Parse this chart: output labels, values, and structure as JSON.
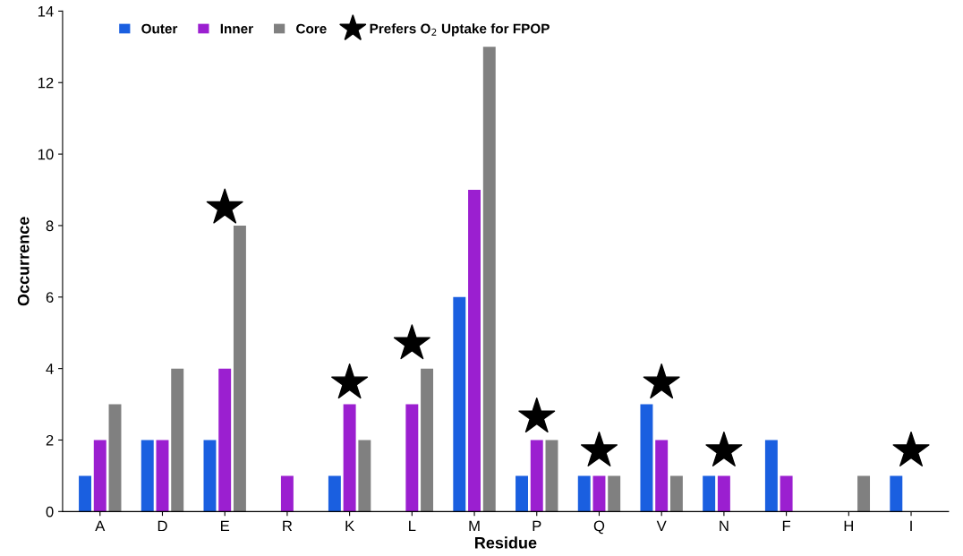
{
  "chart_data": {
    "type": "bar",
    "xlabel": "Residue",
    "ylabel": "Occurrence",
    "categories": [
      "A",
      "D",
      "E",
      "R",
      "K",
      "L",
      "M",
      "P",
      "Q",
      "V",
      "N",
      "F",
      "H",
      "I"
    ],
    "series": [
      {
        "name": "Outer",
        "color": "#1a5fe0",
        "values": [
          1,
          2,
          2,
          0,
          1,
          0,
          6,
          1,
          1,
          3,
          1,
          2,
          0,
          1
        ]
      },
      {
        "name": "Inner",
        "color": "#9b1fd0",
        "values": [
          2,
          2,
          4,
          1,
          3,
          3,
          9,
          2,
          1,
          2,
          1,
          1,
          0,
          0
        ]
      },
      {
        "name": "Core",
        "color": "#808080",
        "values": [
          3,
          4,
          8,
          0,
          2,
          4,
          13,
          2,
          1,
          1,
          0,
          0,
          1,
          0
        ]
      },
      {
        "name": "Prefers O$_{2}$ Uptake for FPOP",
        "type": "scatter",
        "marker": "star",
        "color": "#000000",
        "x": [
          "E",
          "K",
          "L",
          "P",
          "Q",
          "V",
          "N",
          "I"
        ],
        "values": [
          8.5,
          3.6,
          4.7,
          2.65,
          1.7,
          3.6,
          1.7,
          1.7
        ]
      }
    ],
    "ylim": [
      0,
      14
    ],
    "yticks": [
      0,
      2,
      4,
      6,
      8,
      10,
      12,
      14
    ],
    "grid": false,
    "legend": "top left"
  }
}
